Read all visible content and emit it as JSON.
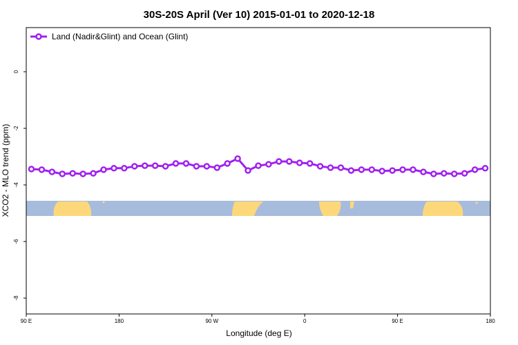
{
  "chart_data": {
    "type": "line",
    "title": "30S-20S April (Ver 10)   2015-01-01 to 2020-12-18",
    "x_label": "Longitude (deg E)",
    "y_label": "XCO2 - MLO trend (ppm)",
    "x": [
      95,
      105,
      115,
      125,
      135,
      145,
      155,
      165,
      175,
      185,
      195,
      205,
      215,
      225,
      235,
      245,
      255,
      265,
      275,
      285,
      295,
      305,
      315,
      325,
      335,
      345,
      355,
      365,
      375,
      385,
      395,
      405,
      415,
      425,
      435,
      445,
      455,
      465,
      475,
      485,
      495,
      505,
      515,
      525,
      535
    ],
    "series": [
      {
        "name": "Land (Nadir&Glint) and Ocean (Glint)",
        "color": "#a020f0",
        "values": [
          -3.44,
          -3.46,
          -3.54,
          -3.61,
          -3.59,
          -3.61,
          -3.59,
          -3.46,
          -3.41,
          -3.41,
          -3.34,
          -3.32,
          -3.32,
          -3.34,
          -3.24,
          -3.24,
          -3.34,
          -3.34,
          -3.39,
          -3.24,
          -3.07,
          -3.49,
          -3.32,
          -3.27,
          -3.17,
          -3.17,
          -3.22,
          -3.24,
          -3.34,
          -3.39,
          -3.39,
          -3.49,
          -3.46,
          -3.46,
          -3.51,
          -3.49,
          -3.46,
          -3.46,
          -3.54,
          -3.61,
          -3.59,
          -3.61,
          -3.59,
          -3.46,
          -3.41
        ]
      }
    ],
    "xlim": [
      90,
      540
    ],
    "xticks": [
      {
        "value": 90,
        "label": "90 E"
      },
      180,
      {
        "value": 270,
        "label": "90 W"
      },
      {
        "value": 360,
        "label": "0"
      },
      {
        "value": 450,
        "label": "90 E"
      },
      {
        "value": 540,
        "label": "180"
      }
    ],
    "ylim": [
      -8.56,
      1.56
    ],
    "yticks": [
      0,
      -2,
      -4,
      -6,
      -8
    ],
    "legend": "topleft"
  }
}
